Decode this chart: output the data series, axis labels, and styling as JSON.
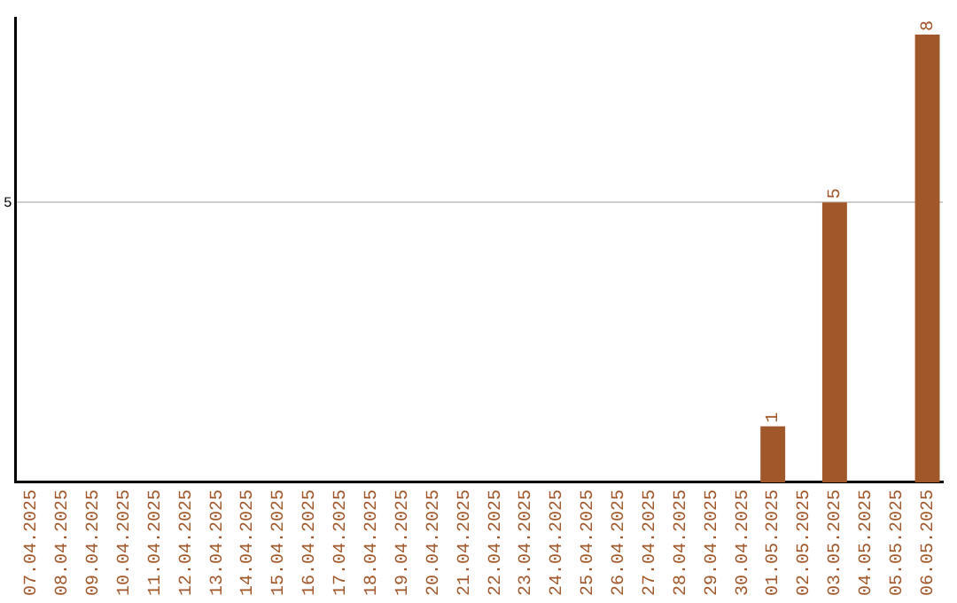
{
  "chart_data": {
    "type": "bar",
    "categories": [
      "07.04.2025",
      "08.04.2025",
      "09.04.2025",
      "10.04.2025",
      "11.04.2025",
      "12.04.2025",
      "13.04.2025",
      "14.04.2025",
      "15.04.2025",
      "16.04.2025",
      "17.04.2025",
      "18.04.2025",
      "19.04.2025",
      "20.04.2025",
      "21.04.2025",
      "22.04.2025",
      "23.04.2025",
      "24.04.2025",
      "25.04.2025",
      "26.04.2025",
      "27.04.2025",
      "28.04.2025",
      "29.04.2025",
      "30.04.2025",
      "01.05.2025",
      "02.05.2025",
      "03.05.2025",
      "04.05.2025",
      "05.05.2025",
      "06.05.2025"
    ],
    "values": [
      null,
      null,
      null,
      null,
      null,
      null,
      null,
      null,
      null,
      null,
      null,
      null,
      null,
      null,
      null,
      null,
      null,
      null,
      null,
      null,
      null,
      null,
      null,
      null,
      1,
      null,
      5,
      null,
      null,
      8
    ],
    "color": "#a0572a",
    "ylim": [
      0,
      8.3
    ],
    "yticks": [
      5
    ],
    "grid": "y",
    "data_labels": true
  }
}
